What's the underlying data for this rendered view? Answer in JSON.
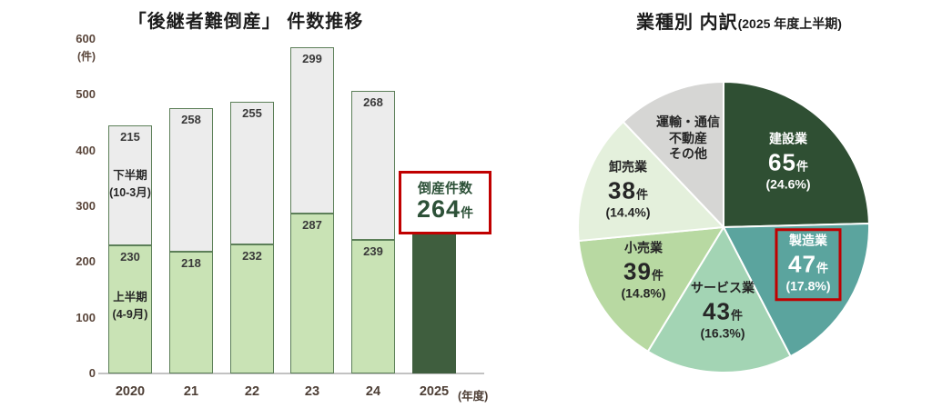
{
  "colors": {
    "accent_red": "#c00000",
    "annotation_text_green": "#2d5138",
    "bar_upper_fill": "#ececec",
    "bar_lower_fill": "#c9e3b5",
    "bar_border": "#5c7f58",
    "bar_2025_fill": "#3f5e3e",
    "axis_label": "#5a463b",
    "axis_line": "#c2c2c2"
  },
  "chart_data": [
    {
      "type": "bar",
      "stacked": true,
      "title": "「後継者難倒産」 件数推移",
      "ylabel": "(件)",
      "x_axis_suffix": "(年度)",
      "ylim": [
        0,
        600
      ],
      "yticks": [
        600,
        500,
        400,
        300,
        200,
        100,
        0
      ],
      "categories": [
        "2020",
        "21",
        "22",
        "23",
        "24",
        "2025"
      ],
      "series": [
        {
          "name": "上半期",
          "period": "(4-9月)",
          "values": [
            230,
            218,
            232,
            287,
            239,
            264
          ]
        },
        {
          "name": "下半期",
          "period": "(10-3月)",
          "values": [
            215,
            258,
            255,
            299,
            268,
            null
          ]
        }
      ],
      "totals": [
        445,
        476,
        487,
        586,
        507,
        264
      ],
      "final_bar_note": "2025 bar shows first-half only, dark green, no border",
      "annotation": {
        "line1": "倒産件数",
        "number": "264",
        "unit": "件"
      }
    },
    {
      "type": "pie",
      "title": "業種別 内訳",
      "subtitle": "(2025 年度上半期)",
      "start_angle_deg": 0,
      "direction": "clockwise",
      "total": 264,
      "slices": [
        {
          "label": "建設業",
          "value": 65,
          "pct": 24.6,
          "count_text": "65",
          "unit": "件",
          "pct_text": "(24.6%)",
          "color": "#2f4f33",
          "text_tone": "light",
          "highlighted": false
        },
        {
          "label": "製造業",
          "value": 47,
          "pct": 17.8,
          "count_text": "47",
          "unit": "件",
          "pct_text": "(17.8%)",
          "color": "#5ba49e",
          "text_tone": "light",
          "highlighted": true
        },
        {
          "label": "サービス業",
          "value": 43,
          "pct": 16.3,
          "count_text": "43",
          "unit": "件",
          "pct_text": "(16.3%)",
          "color": "#a3d4b4",
          "text_tone": "dark",
          "highlighted": false
        },
        {
          "label": "小売業",
          "value": 39,
          "pct": 14.8,
          "count_text": "39",
          "unit": "件",
          "pct_text": "(14.8%)",
          "color": "#b8d9a2",
          "text_tone": "dark",
          "highlighted": false
        },
        {
          "label": "卸売業",
          "value": 38,
          "pct": 14.4,
          "count_text": "38",
          "unit": "件",
          "pct_text": "(14.4%)",
          "color": "#e4f0dc",
          "text_tone": "dark",
          "highlighted": false
        },
        {
          "label": "運輸・通信 不動産 その他",
          "label_lines": [
            "運輸・通信",
            "不動産",
            "その他"
          ],
          "value": 32,
          "pct": 12.1,
          "count_text": null,
          "unit": null,
          "pct_text": null,
          "color": "#d6d6d4",
          "text_tone": "dark",
          "highlighted": false
        }
      ]
    }
  ]
}
